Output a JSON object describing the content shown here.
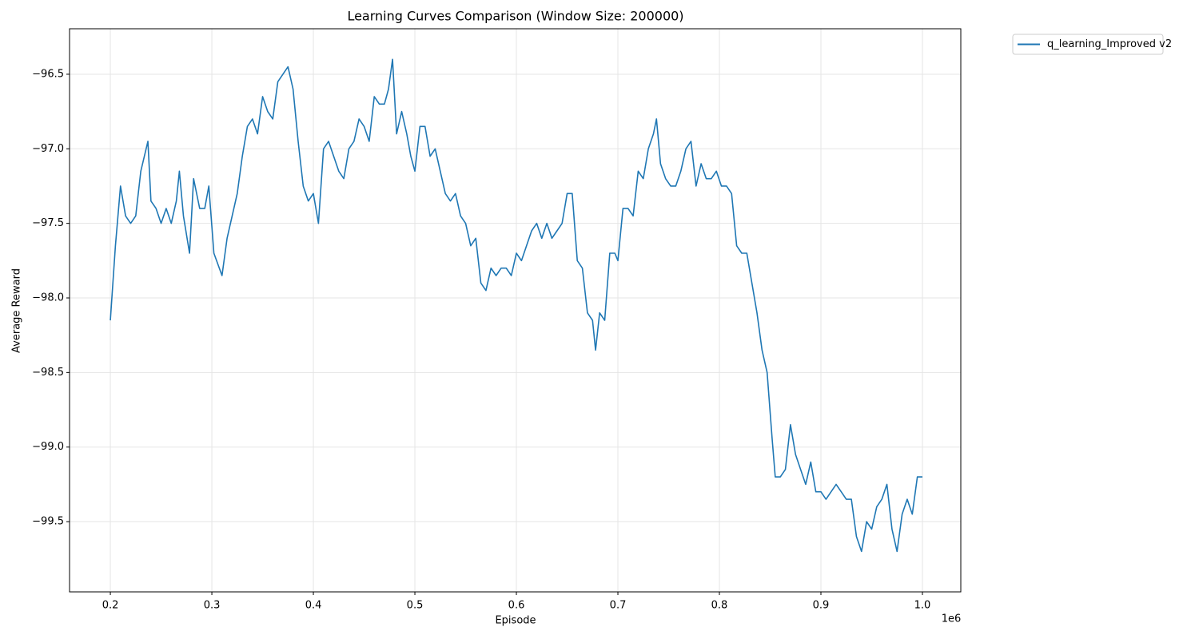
{
  "chart_data": {
    "type": "line",
    "title": "Learning Curves Comparison (Window Size: 200000)",
    "x_label": "Episode",
    "y_label": "Average Reward",
    "x_offset_label": "1e6",
    "xlim": [
      159800,
      1037800
    ],
    "ylim": [
      -99.971,
      -96.195
    ],
    "xticks": [
      {
        "value": 200000,
        "label": "0.2"
      },
      {
        "value": 300000,
        "label": "0.3"
      },
      {
        "value": 400000,
        "label": "0.4"
      },
      {
        "value": 500000,
        "label": "0.5"
      },
      {
        "value": 600000,
        "label": "0.6"
      },
      {
        "value": 700000,
        "label": "0.7"
      },
      {
        "value": 800000,
        "label": "0.8"
      },
      {
        "value": 900000,
        "label": "0.9"
      },
      {
        "value": 1000000,
        "label": "1.0"
      }
    ],
    "yticks": [
      {
        "value": -96.5,
        "label": "−96.5"
      },
      {
        "value": -97.0,
        "label": "−97.0"
      },
      {
        "value": -97.5,
        "label": "−97.5"
      },
      {
        "value": -98.0,
        "label": "−98.0"
      },
      {
        "value": -98.5,
        "label": "−98.5"
      },
      {
        "value": -99.0,
        "label": "−99.0"
      },
      {
        "value": -99.5,
        "label": "−99.5"
      }
    ],
    "grid": true,
    "legend": "upper right outside",
    "x": [
      200000,
      205000,
      210000,
      215000,
      220000,
      225000,
      230000,
      237000,
      240000,
      245000,
      250000,
      255000,
      260000,
      265000,
      268000,
      272000,
      278000,
      282000,
      288000,
      293000,
      297000,
      302000,
      310000,
      315000,
      320000,
      325000,
      330000,
      335000,
      340000,
      345000,
      350000,
      355000,
      360000,
      365000,
      370000,
      375000,
      380000,
      385000,
      390000,
      395000,
      400000,
      405000,
      410000,
      415000,
      420000,
      425000,
      430000,
      435000,
      440000,
      445000,
      450000,
      455000,
      460000,
      465000,
      470000,
      474000,
      478000,
      482000,
      487000,
      492000,
      496000,
      500000,
      505000,
      510000,
      515000,
      520000,
      525000,
      530000,
      535000,
      540000,
      545000,
      550000,
      555000,
      560000,
      565000,
      570000,
      575000,
      580000,
      585000,
      590000,
      595000,
      600000,
      605000,
      610000,
      615000,
      620000,
      625000,
      630000,
      635000,
      640000,
      645000,
      650000,
      655000,
      660000,
      665000,
      670000,
      675000,
      678000,
      682000,
      687000,
      692000,
      697000,
      700000,
      705000,
      710000,
      715000,
      720000,
      725000,
      730000,
      735000,
      738000,
      742000,
      747000,
      752000,
      757000,
      762000,
      767000,
      772000,
      777000,
      782000,
      787000,
      792000,
      797000,
      802000,
      807000,
      812000,
      817000,
      822000,
      827000,
      832000,
      837000,
      842000,
      847000,
      852000,
      855000,
      860000,
      865000,
      870000,
      875000,
      880000,
      885000,
      890000,
      895000,
      900000,
      905000,
      910000,
      915000,
      920000,
      925000,
      930000,
      935000,
      940000,
      945000,
      950000,
      955000,
      960000,
      965000,
      970000,
      975000,
      980000,
      985000,
      990000,
      995000,
      1000000
    ],
    "series": [
      {
        "name": "q_learning_Improved v2",
        "color": "#1f77b4",
        "values": [
          -98.15,
          -97.65,
          -97.25,
          -97.45,
          -97.5,
          -97.45,
          -97.15,
          -96.95,
          -97.35,
          -97.4,
          -97.5,
          -97.4,
          -97.5,
          -97.35,
          -97.15,
          -97.45,
          -97.7,
          -97.2,
          -97.4,
          -97.4,
          -97.25,
          -97.7,
          -97.85,
          -97.6,
          -97.45,
          -97.3,
          -97.05,
          -96.85,
          -96.8,
          -96.9,
          -96.65,
          -96.75,
          -96.8,
          -96.55,
          -96.5,
          -96.45,
          -96.6,
          -96.95,
          -97.25,
          -97.35,
          -97.3,
          -97.5,
          -97.0,
          -96.95,
          -97.05,
          -97.15,
          -97.2,
          -97.0,
          -96.95,
          -96.8,
          -96.85,
          -96.95,
          -96.65,
          -96.7,
          -96.7,
          -96.6,
          -96.4,
          -96.9,
          -96.75,
          -96.9,
          -97.05,
          -97.15,
          -96.85,
          -96.85,
          -97.05,
          -97.0,
          -97.15,
          -97.3,
          -97.35,
          -97.3,
          -97.45,
          -97.5,
          -97.65,
          -97.6,
          -97.9,
          -97.95,
          -97.8,
          -97.85,
          -97.8,
          -97.8,
          -97.85,
          -97.7,
          -97.75,
          -97.65,
          -97.55,
          -97.5,
          -97.6,
          -97.5,
          -97.6,
          -97.55,
          -97.5,
          -97.3,
          -97.3,
          -97.75,
          -97.8,
          -98.1,
          -98.15,
          -98.35,
          -98.1,
          -98.15,
          -97.7,
          -97.7,
          -97.75,
          -97.4,
          -97.4,
          -97.45,
          -97.15,
          -97.2,
          -97.0,
          -96.9,
          -96.8,
          -97.1,
          -97.2,
          -97.25,
          -97.25,
          -97.15,
          -97.0,
          -96.95,
          -97.25,
          -97.1,
          -97.2,
          -97.2,
          -97.15,
          -97.25,
          -97.25,
          -97.3,
          -97.65,
          -97.7,
          -97.7,
          -97.9,
          -98.1,
          -98.35,
          -98.5,
          -98.95,
          -99.2,
          -99.2,
          -99.15,
          -98.85,
          -99.05,
          -99.15,
          -99.25,
          -99.1,
          -99.3,
          -99.3,
          -99.35,
          -99.3,
          -99.25,
          -99.3,
          -99.35,
          -99.35,
          -99.6,
          -99.7,
          -99.5,
          -99.55,
          -99.4,
          -99.35,
          -99.25,
          -99.55,
          -99.7,
          -99.45,
          -99.35,
          -99.45,
          -99.2,
          -99.2
        ]
      }
    ]
  }
}
